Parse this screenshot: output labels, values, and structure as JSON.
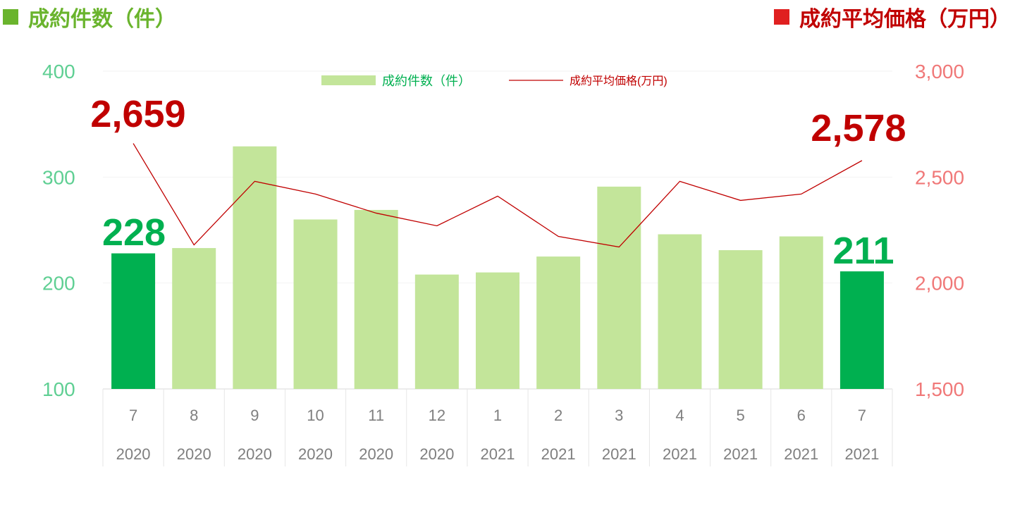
{
  "header": {
    "left_title": "成約件数（件）",
    "right_title": "成約平均価格（万円）"
  },
  "chart_data": {
    "type": "bar",
    "categories": [
      {
        "month": "7",
        "year": "2020"
      },
      {
        "month": "8",
        "year": "2020"
      },
      {
        "month": "9",
        "year": "2020"
      },
      {
        "month": "10",
        "year": "2020"
      },
      {
        "month": "11",
        "year": "2020"
      },
      {
        "month": "12",
        "year": "2020"
      },
      {
        "month": "1",
        "year": "2021"
      },
      {
        "month": "2",
        "year": "2021"
      },
      {
        "month": "3",
        "year": "2021"
      },
      {
        "month": "4",
        "year": "2021"
      },
      {
        "month": "5",
        "year": "2021"
      },
      {
        "month": "6",
        "year": "2021"
      },
      {
        "month": "7",
        "year": "2021"
      }
    ],
    "series": [
      {
        "name": "成約件数（件）",
        "type": "bar",
        "axis": "left",
        "values": [
          228,
          233,
          329,
          260,
          269,
          208,
          210,
          225,
          291,
          246,
          231,
          244,
          211
        ],
        "color": "#c3e59a",
        "highlight_color": "#00b050",
        "highlight_indices": [
          0,
          12
        ]
      },
      {
        "name": "成約平均価格(万円)",
        "type": "line",
        "axis": "right",
        "values": [
          2659,
          2180,
          2480,
          2420,
          2330,
          2270,
          2410,
          2220,
          2170,
          2480,
          2390,
          2420,
          2578
        ],
        "color": "#c00000"
      }
    ],
    "y_left": {
      "min": 100,
      "max": 400,
      "ticks": [
        "100",
        "200",
        "300",
        "400"
      ]
    },
    "y_right": {
      "min": 1500,
      "max": 3000,
      "ticks": [
        "1,500",
        "2,000",
        "2,500",
        "3,000"
      ]
    },
    "legend_position": "top-center",
    "callouts": [
      {
        "text": "2,659",
        "series": "line",
        "index": 0
      },
      {
        "text": "2,578",
        "series": "line",
        "index": 12
      },
      {
        "text": "228",
        "series": "bar",
        "index": 0
      },
      {
        "text": "211",
        "series": "bar",
        "index": 12
      }
    ]
  }
}
